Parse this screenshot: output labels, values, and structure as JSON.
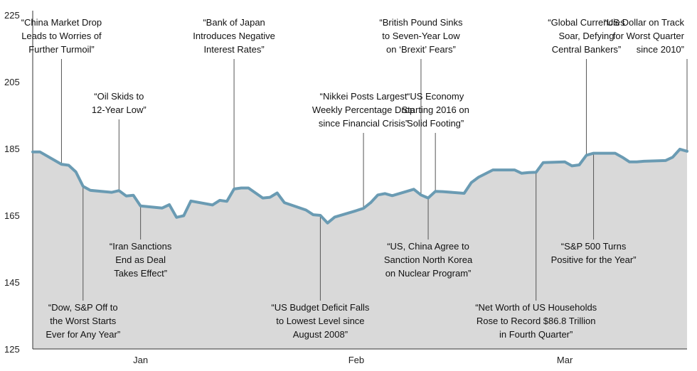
{
  "chart_data": {
    "type": "area",
    "title": "",
    "xlabel": "",
    "ylabel": "",
    "ylim": [
      125,
      225
    ],
    "yticks": [
      225,
      205,
      185,
      165,
      145,
      125
    ],
    "y_tick_labels": [
      "225",
      "205",
      "185",
      "165",
      "145",
      "125"
    ],
    "x_tick_labels": [
      {
        "label": "Jan",
        "date": "2016-01-15"
      },
      {
        "label": "Feb",
        "date": "2016-02-14"
      },
      {
        "label": "Mar",
        "date": "2016-03-14"
      }
    ],
    "xlim": [
      "2015-12-31",
      "2016-03-31"
    ],
    "grid": false,
    "legend": "none",
    "colors": {
      "line": "#6a9bb3",
      "fill": "#d9d9d9"
    },
    "series": [
      {
        "points": [
          {
            "date": "2015-12-31",
            "value": 184.0
          },
          {
            "date": "2016-01-01",
            "value": 184.0
          },
          {
            "date": "2016-01-04",
            "value": 180.3
          },
          {
            "date": "2016-01-05",
            "value": 180.0
          },
          {
            "date": "2016-01-06",
            "value": 178.0
          },
          {
            "date": "2016-01-07",
            "value": 173.7
          },
          {
            "date": "2016-01-08",
            "value": 172.5
          },
          {
            "date": "2016-01-11",
            "value": 171.9
          },
          {
            "date": "2016-01-12",
            "value": 172.4
          },
          {
            "date": "2016-01-13",
            "value": 170.8
          },
          {
            "date": "2016-01-14",
            "value": 171.0
          },
          {
            "date": "2016-01-15",
            "value": 167.8
          },
          {
            "date": "2016-01-18",
            "value": 167.2
          },
          {
            "date": "2016-01-19",
            "value": 168.2
          },
          {
            "date": "2016-01-20",
            "value": 164.4
          },
          {
            "date": "2016-01-21",
            "value": 164.9
          },
          {
            "date": "2016-01-22",
            "value": 169.3
          },
          {
            "date": "2016-01-25",
            "value": 168.1
          },
          {
            "date": "2016-01-26",
            "value": 169.5
          },
          {
            "date": "2016-01-27",
            "value": 169.2
          },
          {
            "date": "2016-01-28",
            "value": 172.9
          },
          {
            "date": "2016-01-29",
            "value": 173.2
          },
          {
            "date": "2016-01-30",
            "value": 173.2
          },
          {
            "date": "2016-02-01",
            "value": 170.2
          },
          {
            "date": "2016-02-02",
            "value": 170.4
          },
          {
            "date": "2016-02-03",
            "value": 171.7
          },
          {
            "date": "2016-02-04",
            "value": 168.8
          },
          {
            "date": "2016-02-07",
            "value": 166.6
          },
          {
            "date": "2016-02-08",
            "value": 165.2
          },
          {
            "date": "2016-02-09",
            "value": 165.0
          },
          {
            "date": "2016-02-10",
            "value": 162.7
          },
          {
            "date": "2016-02-11",
            "value": 164.5
          },
          {
            "date": "2016-02-14",
            "value": 166.4
          },
          {
            "date": "2016-02-15",
            "value": 167.1
          },
          {
            "date": "2016-02-16",
            "value": 168.8
          },
          {
            "date": "2016-02-17",
            "value": 171.1
          },
          {
            "date": "2016-02-18",
            "value": 171.5
          },
          {
            "date": "2016-02-19",
            "value": 170.9
          },
          {
            "date": "2016-02-22",
            "value": 172.8
          },
          {
            "date": "2016-02-23",
            "value": 171.1
          },
          {
            "date": "2016-02-24",
            "value": 170.2
          },
          {
            "date": "2016-02-25",
            "value": 172.2
          },
          {
            "date": "2016-02-26",
            "value": 172.1
          },
          {
            "date": "2016-02-29",
            "value": 171.6
          },
          {
            "date": "2016-03-01",
            "value": 174.8
          },
          {
            "date": "2016-03-02",
            "value": 176.4
          },
          {
            "date": "2016-03-04",
            "value": 178.6
          },
          {
            "date": "2016-03-07",
            "value": 178.6
          },
          {
            "date": "2016-03-08",
            "value": 177.6
          },
          {
            "date": "2016-03-09",
            "value": 177.8
          },
          {
            "date": "2016-03-10",
            "value": 177.9
          },
          {
            "date": "2016-03-11",
            "value": 180.8
          },
          {
            "date": "2016-03-14",
            "value": 181.0
          },
          {
            "date": "2016-03-15",
            "value": 179.8
          },
          {
            "date": "2016-03-16",
            "value": 180.1
          },
          {
            "date": "2016-03-17",
            "value": 183.0
          },
          {
            "date": "2016-03-18",
            "value": 183.6
          },
          {
            "date": "2016-03-21",
            "value": 183.6
          },
          {
            "date": "2016-03-22",
            "value": 182.4
          },
          {
            "date": "2016-03-23",
            "value": 181.0
          },
          {
            "date": "2016-03-24",
            "value": 181.0
          },
          {
            "date": "2016-03-25",
            "value": 181.2
          },
          {
            "date": "2016-03-28",
            "value": 181.4
          },
          {
            "date": "2016-03-29",
            "value": 182.4
          },
          {
            "date": "2016-03-30",
            "value": 184.8
          },
          {
            "date": "2016-03-31",
            "value": 184.2
          }
        ]
      }
    ],
    "annotations": [
      {
        "lines": [
          "“China Market Drop",
          "Leads to Worries of",
          "Further Turmoil”"
        ],
        "date": "2016-01-04",
        "value": 180.3,
        "position": "above",
        "align": "center"
      },
      {
        "lines": [
          "“Dow, S&P Off to",
          "the Worst Starts",
          "Ever for Any Year”"
        ],
        "date": "2016-01-07",
        "value": 173.7,
        "position": "below",
        "align": "center"
      },
      {
        "lines": [
          "“Oil Skids to",
          "12-Year Low”"
        ],
        "date": "2016-01-12",
        "value": 172.4,
        "position": "above",
        "align": "center"
      },
      {
        "lines": [
          "“Iran Sanctions",
          "End as Deal",
          "Takes Effect”"
        ],
        "date": "2016-01-15",
        "value": 167.8,
        "position": "below",
        "align": "center"
      },
      {
        "lines": [
          "“Bank of Japan",
          "Introduces Negative",
          "Interest Rates”"
        ],
        "date": "2016-01-28",
        "value": 172.9,
        "position": "above",
        "align": "center"
      },
      {
        "lines": [
          "“US Budget Deficit Falls",
          "to Lowest Level since",
          "August 2008”"
        ],
        "date": "2016-02-09",
        "value": 165.0,
        "position": "below",
        "align": "center"
      },
      {
        "lines": [
          "“Nikkei Posts Largest",
          "Weekly Percentage Drop",
          "since Financial Crisis”"
        ],
        "date": "2016-02-15",
        "value": 167.1,
        "position": "above",
        "align": "center"
      },
      {
        "lines": [
          "“British Pound Sinks",
          "to Seven-Year Low",
          "on ‘Brexit’ Fears”"
        ],
        "date": "2016-02-23",
        "value": 171.1,
        "position": "above",
        "align": "center"
      },
      {
        "lines": [
          "“US, China Agree to",
          "Sanction North Korea",
          "on Nuclear Program”"
        ],
        "date": "2016-02-24",
        "value": 170.2,
        "position": "below",
        "align": "center"
      },
      {
        "lines": [
          "“US Economy",
          "Starting 2016 on",
          "Solid Footing”"
        ],
        "date": "2016-02-25",
        "value": 172.2,
        "position": "above",
        "align": "center"
      },
      {
        "lines": [
          "“Net Worth of US Households",
          "Rose to Record $86.8 Trillion",
          "in Fourth Quarter”"
        ],
        "date": "2016-03-10",
        "value": 177.9,
        "position": "below",
        "align": "center"
      },
      {
        "lines": [
          "“Global Currencies",
          "Soar, Defying",
          "Central Bankers”"
        ],
        "date": "2016-03-17",
        "value": 183.0,
        "position": "above",
        "align": "center"
      },
      {
        "lines": [
          "“S&P 500 Turns",
          "Positive for the Year”"
        ],
        "date": "2016-03-18",
        "value": 183.6,
        "position": "below",
        "align": "center"
      },
      {
        "lines": [
          "“US Dollar on Track",
          "for Worst Quarter",
          "since 2010”"
        ],
        "date": "2016-03-31",
        "value": 184.2,
        "position": "above",
        "align": "right"
      }
    ]
  }
}
